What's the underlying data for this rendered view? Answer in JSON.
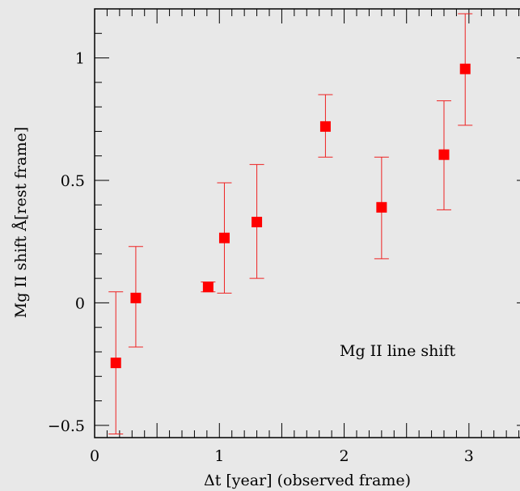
{
  "chart_data": {
    "type": "scatter",
    "xlabel": "Δt [year] (observed frame)",
    "ylabel": "Mg II shift Å[rest frame]",
    "annotation": "Mg II line shift",
    "xlim": [
      0,
      3.5
    ],
    "ylim": [
      -0.55,
      1.2
    ],
    "x_ticks": [
      0,
      1,
      2,
      3
    ],
    "x_tick_labels": [
      "0",
      "1",
      "2",
      "3"
    ],
    "y_ticks": [
      -0.5,
      0,
      0.5,
      1
    ],
    "y_tick_labels": [
      "−0.5",
      "0",
      "0.5",
      "1"
    ],
    "grid": false,
    "colors": {
      "marker": "#ff0000",
      "errorbar": "#ee2222",
      "background": "#e8e8e8"
    },
    "points": [
      {
        "x": 0.17,
        "y": -0.245,
        "ylow": -0.535,
        "yhigh": 0.045
      },
      {
        "x": 0.33,
        "y": 0.02,
        "ylow": -0.18,
        "yhigh": 0.23
      },
      {
        "x": 0.91,
        "y": 0.065,
        "ylow": 0.045,
        "yhigh": 0.085
      },
      {
        "x": 1.04,
        "y": 0.265,
        "ylow": 0.04,
        "yhigh": 0.49
      },
      {
        "x": 1.3,
        "y": 0.33,
        "ylow": 0.1,
        "yhigh": 0.565
      },
      {
        "x": 1.85,
        "y": 0.72,
        "ylow": 0.595,
        "yhigh": 0.85
      },
      {
        "x": 2.3,
        "y": 0.39,
        "ylow": 0.18,
        "yhigh": 0.595
      },
      {
        "x": 2.8,
        "y": 0.605,
        "ylow": 0.38,
        "yhigh": 0.825
      },
      {
        "x": 2.97,
        "y": 0.955,
        "ylow": 0.725,
        "yhigh": 1.18
      }
    ]
  }
}
